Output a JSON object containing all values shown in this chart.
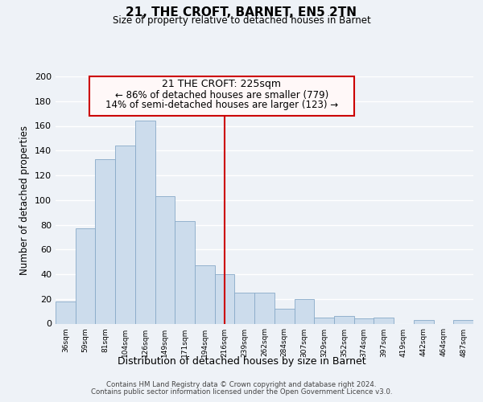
{
  "title": "21, THE CROFT, BARNET, EN5 2TN",
  "subtitle": "Size of property relative to detached houses in Barnet",
  "xlabel": "Distribution of detached houses by size in Barnet",
  "ylabel": "Number of detached properties",
  "bar_color": "#ccdcec",
  "bar_edge_color": "#88aac8",
  "reference_line_color": "#cc0000",
  "annotation_title": "21 THE CROFT: 225sqm",
  "annotation_line1": "← 86% of detached houses are smaller (779)",
  "annotation_line2": "14% of semi-detached houses are larger (123) →",
  "annotation_box_color": "#fff8f8",
  "annotation_box_edge": "#cc0000",
  "categories": [
    "36sqm",
    "59sqm",
    "81sqm",
    "104sqm",
    "126sqm",
    "149sqm",
    "171sqm",
    "194sqm",
    "216sqm",
    "239sqm",
    "262sqm",
    "284sqm",
    "307sqm",
    "329sqm",
    "352sqm",
    "374sqm",
    "397sqm",
    "419sqm",
    "442sqm",
    "464sqm",
    "487sqm"
  ],
  "values": [
    18,
    77,
    133,
    144,
    164,
    103,
    83,
    47,
    40,
    25,
    25,
    12,
    20,
    5,
    6,
    4,
    5,
    0,
    3,
    0,
    3
  ],
  "ylim": [
    0,
    200
  ],
  "yticks": [
    0,
    20,
    40,
    60,
    80,
    100,
    120,
    140,
    160,
    180,
    200
  ],
  "ref_category": "216sqm",
  "footer1": "Contains HM Land Registry data © Crown copyright and database right 2024.",
  "footer2": "Contains public sector information licensed under the Open Government Licence v3.0.",
  "background_color": "#eef2f7",
  "plot_bg_color": "#eef2f7",
  "grid_color": "#ffffff"
}
